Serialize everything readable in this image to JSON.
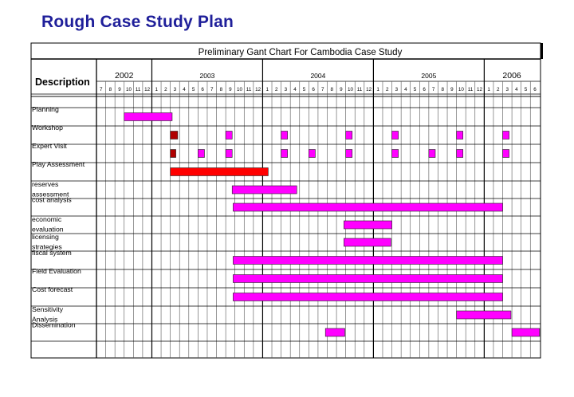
{
  "page": {
    "title": "Rough Case Study Plan"
  },
  "chart_data": {
    "type": "gantt",
    "title": "Preliminary Gant Chart For Cambodia Case Study",
    "description_header": "Description",
    "years": [
      {
        "label": "2002",
        "months": [
          "7",
          "8",
          "9",
          "10",
          "11",
          "12"
        ]
      },
      {
        "label": "2003",
        "months": [
          "1",
          "2",
          "3",
          "4",
          "5",
          "6",
          "7",
          "8",
          "9",
          "10",
          "11",
          "12"
        ]
      },
      {
        "label": "2004",
        "months": [
          "1",
          "2",
          "3",
          "4",
          "5",
          "6",
          "7",
          "8",
          "9",
          "10",
          "11",
          "12"
        ]
      },
      {
        "label": "2005",
        "months": [
          "1",
          "2",
          "3",
          "4",
          "5",
          "6",
          "7",
          "8",
          "9",
          "10",
          "11",
          "12"
        ]
      },
      {
        "label": "2006",
        "months": [
          "1",
          "2",
          "3",
          "4",
          "5",
          "6"
        ]
      }
    ],
    "colors": {
      "primary": "#ff00ff",
      "highlight": "#ff0000",
      "highlight_dark": "#b00000",
      "title_color": "#1f1f9a"
    },
    "tasks": [
      {
        "label": [
          "Planning"
        ],
        "bars": [
          {
            "start": 3,
            "end": 8.2
          }
        ]
      },
      {
        "label": [
          "Workshop"
        ],
        "bars": [
          {
            "start": 8,
            "end": 8.8,
            "color": "highlight_dark"
          },
          {
            "start": 14,
            "end": 14.7
          },
          {
            "start": 20,
            "end": 20.7
          },
          {
            "start": 27,
            "end": 27.7
          },
          {
            "start": 32,
            "end": 32.7
          },
          {
            "start": 39,
            "end": 39.7
          },
          {
            "start": 44,
            "end": 44.7
          }
        ]
      },
      {
        "label": [
          "Expert Visit"
        ],
        "bars": [
          {
            "start": 8,
            "end": 8.6,
            "color": "highlight_dark"
          },
          {
            "start": 11,
            "end": 11.7
          },
          {
            "start": 14,
            "end": 14.7
          },
          {
            "start": 20,
            "end": 20.7
          },
          {
            "start": 23,
            "end": 23.7
          },
          {
            "start": 27,
            "end": 27.7
          },
          {
            "start": 32,
            "end": 32.7
          },
          {
            "start": 36,
            "end": 36.7
          },
          {
            "start": 39,
            "end": 39.7
          },
          {
            "start": 44,
            "end": 44.7
          }
        ]
      },
      {
        "label": [
          "Play Assessment"
        ],
        "bars": [
          {
            "start": 8,
            "end": 18.6,
            "color": "highlight"
          }
        ]
      },
      {
        "label": [
          "reserves",
          "assessment"
        ],
        "bars": [
          {
            "start": 14.7,
            "end": 21.7
          }
        ]
      },
      {
        "label": [
          "cost analysis"
        ],
        "bars": [
          {
            "start": 14.8,
            "end": 44
          }
        ]
      },
      {
        "label": [
          "economic",
          "evaluation"
        ],
        "bars": [
          {
            "start": 26.8,
            "end": 32
          }
        ]
      },
      {
        "label": [
          "licensing",
          "strategies"
        ],
        "bars": [
          {
            "start": 26.8,
            "end": 31.9
          }
        ]
      },
      {
        "label": [
          "fiscal system"
        ],
        "bars": [
          {
            "start": 14.8,
            "end": 44
          }
        ]
      },
      {
        "label": [
          "Field Evaluation"
        ],
        "bars": [
          {
            "start": 14.8,
            "end": 44
          }
        ]
      },
      {
        "label": [
          "Cost forecast"
        ],
        "bars": [
          {
            "start": 14.8,
            "end": 44
          }
        ]
      },
      {
        "label": [
          "Sensitivity",
          "Analysis"
        ],
        "bars": [
          {
            "start": 39,
            "end": 44.9
          }
        ]
      },
      {
        "label": [
          "Dissemination"
        ],
        "bars": [
          {
            "start": 24.8,
            "end": 26.9
          },
          {
            "start": 45,
            "end": 48
          }
        ]
      }
    ]
  }
}
